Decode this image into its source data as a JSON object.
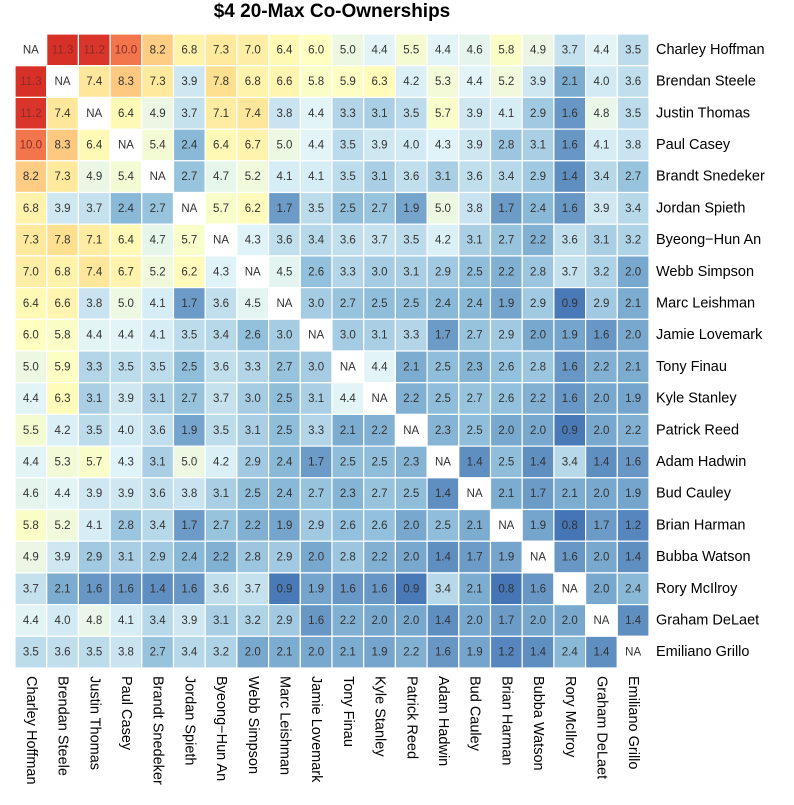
{
  "chart_data": {
    "type": "heatmap",
    "title": "$4 20-Max Co-Ownerships",
    "players": [
      "Charley Hoffman",
      "Brendan Steele",
      "Justin Thomas",
      "Paul Casey",
      "Brandt Snedeker",
      "Jordan Spieth",
      "Byeong-Hun An",
      "Webb Simpson",
      "Marc Leishman",
      "Jamie Lovemark",
      "Tony Finau",
      "Kyle Stanley",
      "Patrick Reed",
      "Adam Hadwin",
      "Bud Cauley",
      "Brian Harman",
      "Bubba Watson",
      "Rory McIlroy",
      "Graham DeLaet",
      "Emiliano Grillo"
    ],
    "row_labels": [
      "Charley Hoffman",
      "Brendan Steele",
      "Justin Thomas",
      "Paul Casey",
      "Brandt Snedeker",
      "Jordan Spieth",
      "Byeong−Hun An",
      "Webb Simpson",
      "Marc Leishman",
      "Jamie Lovemark",
      "Tony Finau",
      "Kyle Stanley",
      "Patrick Reed",
      "Adam Hadwin",
      "Bud Cauley",
      "Brian Harman",
      "Bubba Watson",
      "Rory McIlroy",
      "Graham DeLaet",
      "Emiliano Grillo"
    ],
    "col_labels": [
      "Charley Hoffman",
      "Brendan Steele",
      "Justin Thomas",
      "Paul Casey",
      "Brandt Snedeker",
      "Jordan Spieth",
      "Byeong−Hun An",
      "Webb Simpson",
      "Marc Leishman",
      "Jamie Lovemark",
      "Tony Finau",
      "Kyle Stanley",
      "Patrick Reed",
      "Adam Hadwin",
      "Bud Cauley",
      "Brian Harman",
      "Bubba Watson",
      "Rory McIlroy",
      "Graham DeLaet",
      "Emiliano Grillo"
    ],
    "na_label": "NA",
    "values": [
      [
        null,
        11.3,
        11.2,
        10.0,
        8.2,
        6.8,
        7.3,
        7.0,
        6.4,
        6.0,
        5.0,
        4.4,
        5.5,
        4.4,
        4.6,
        5.8,
        4.9,
        3.7,
        4.4,
        3.5
      ],
      [
        11.3,
        null,
        7.4,
        8.3,
        7.3,
        3.9,
        7.8,
        6.8,
        6.6,
        5.8,
        5.9,
        6.3,
        4.2,
        5.3,
        4.4,
        5.2,
        3.9,
        2.1,
        4.0,
        3.6
      ],
      [
        11.2,
        7.4,
        null,
        6.4,
        4.9,
        3.7,
        7.1,
        7.4,
        3.8,
        4.4,
        3.3,
        3.1,
        3.5,
        5.7,
        3.9,
        4.1,
        2.9,
        1.6,
        4.8,
        3.5
      ],
      [
        10.0,
        8.3,
        6.4,
        null,
        5.4,
        2.4,
        6.4,
        6.7,
        5.0,
        4.4,
        3.5,
        3.9,
        4.0,
        4.3,
        3.9,
        2.8,
        3.1,
        1.6,
        4.1,
        3.8
      ],
      [
        8.2,
        7.3,
        4.9,
        5.4,
        null,
        2.7,
        4.7,
        5.2,
        4.1,
        4.1,
        3.5,
        3.1,
        3.6,
        3.1,
        3.6,
        3.4,
        2.9,
        1.4,
        3.4,
        2.7
      ],
      [
        6.8,
        3.9,
        3.7,
        2.4,
        2.7,
        null,
        5.7,
        6.2,
        1.7,
        3.5,
        2.5,
        2.7,
        1.9,
        5.0,
        3.8,
        1.7,
        2.4,
        1.6,
        3.9,
        3.4
      ],
      [
        7.3,
        7.8,
        7.1,
        6.4,
        4.7,
        5.7,
        null,
        4.3,
        3.6,
        3.4,
        3.6,
        3.7,
        3.5,
        4.2,
        3.1,
        2.7,
        2.2,
        3.6,
        3.1,
        3.2
      ],
      [
        7.0,
        6.8,
        7.4,
        6.7,
        5.2,
        6.2,
        4.3,
        null,
        4.5,
        2.6,
        3.3,
        3.0,
        3.1,
        2.9,
        2.5,
        2.2,
        2.8,
        3.7,
        3.2,
        2.0
      ],
      [
        6.4,
        6.6,
        3.8,
        5.0,
        4.1,
        1.7,
        3.6,
        4.5,
        null,
        3.0,
        2.7,
        2.5,
        2.5,
        2.4,
        2.4,
        1.9,
        2.9,
        0.9,
        2.9,
        2.1
      ],
      [
        6.0,
        5.8,
        4.4,
        4.4,
        4.1,
        3.5,
        3.4,
        2.6,
        3.0,
        null,
        3.0,
        3.1,
        3.3,
        1.7,
        2.7,
        2.9,
        2.0,
        1.9,
        1.6,
        2.0
      ],
      [
        5.0,
        5.9,
        3.3,
        3.5,
        3.5,
        2.5,
        3.6,
        3.3,
        2.7,
        3.0,
        null,
        4.4,
        2.1,
        2.5,
        2.3,
        2.6,
        2.8,
        1.6,
        2.2,
        2.1
      ],
      [
        4.4,
        6.3,
        3.1,
        3.9,
        3.1,
        2.7,
        3.7,
        3.0,
        2.5,
        3.1,
        4.4,
        null,
        2.2,
        2.5,
        2.7,
        2.6,
        2.2,
        1.6,
        2.0,
        1.9
      ],
      [
        5.5,
        4.2,
        3.5,
        4.0,
        3.6,
        1.9,
        3.5,
        3.1,
        2.5,
        3.3,
        2.1,
        2.2,
        null,
        2.3,
        2.5,
        2.0,
        2.0,
        0.9,
        2.0,
        2.2
      ],
      [
        4.4,
        5.3,
        5.7,
        4.3,
        3.1,
        5.0,
        4.2,
        2.9,
        2.4,
        1.7,
        2.5,
        2.5,
        2.3,
        null,
        1.4,
        2.5,
        1.4,
        3.4,
        1.4,
        1.6
      ],
      [
        4.6,
        4.4,
        3.9,
        3.9,
        3.6,
        3.8,
        3.1,
        2.5,
        2.4,
        2.7,
        2.3,
        2.7,
        2.5,
        1.4,
        null,
        2.1,
        1.7,
        2.1,
        2.0,
        1.9
      ],
      [
        5.8,
        5.2,
        4.1,
        2.8,
        3.4,
        1.7,
        2.7,
        2.2,
        1.9,
        2.9,
        2.6,
        2.6,
        2.0,
        2.5,
        2.1,
        null,
        1.9,
        0.8,
        1.7,
        1.2
      ],
      [
        4.9,
        3.9,
        2.9,
        3.1,
        2.9,
        2.4,
        2.2,
        2.8,
        2.9,
        2.0,
        2.8,
        2.2,
        2.0,
        1.4,
        1.7,
        1.9,
        null,
        1.6,
        2.0,
        1.4
      ],
      [
        3.7,
        2.1,
        1.6,
        1.6,
        1.4,
        1.6,
        3.6,
        3.7,
        0.9,
        1.9,
        1.6,
        1.6,
        0.9,
        3.4,
        2.1,
        0.8,
        1.6,
        null,
        2.0,
        2.4
      ],
      [
        4.4,
        4.0,
        4.8,
        4.1,
        3.4,
        3.9,
        3.1,
        3.2,
        2.9,
        1.6,
        2.2,
        2.0,
        2.0,
        1.4,
        2.0,
        1.7,
        2.0,
        2.0,
        null,
        1.4
      ],
      [
        3.5,
        3.6,
        3.5,
        3.8,
        2.7,
        3.4,
        3.2,
        2.0,
        2.1,
        2.0,
        2.1,
        1.9,
        2.2,
        1.6,
        1.9,
        1.2,
        1.4,
        2.4,
        1.4,
        null
      ]
    ],
    "value_range": [
      0.8,
      11.3
    ],
    "color_scale": [
      "#4575b4",
      "#91bfdb",
      "#e0f3f8",
      "#ffffbf",
      "#fee090",
      "#fc8d59",
      "#d73027"
    ],
    "na_color": "#ffffff",
    "grid_line_color": "#ffffff",
    "label_color_dark": "#333333",
    "label_color_hot": "#8b2a2a"
  }
}
